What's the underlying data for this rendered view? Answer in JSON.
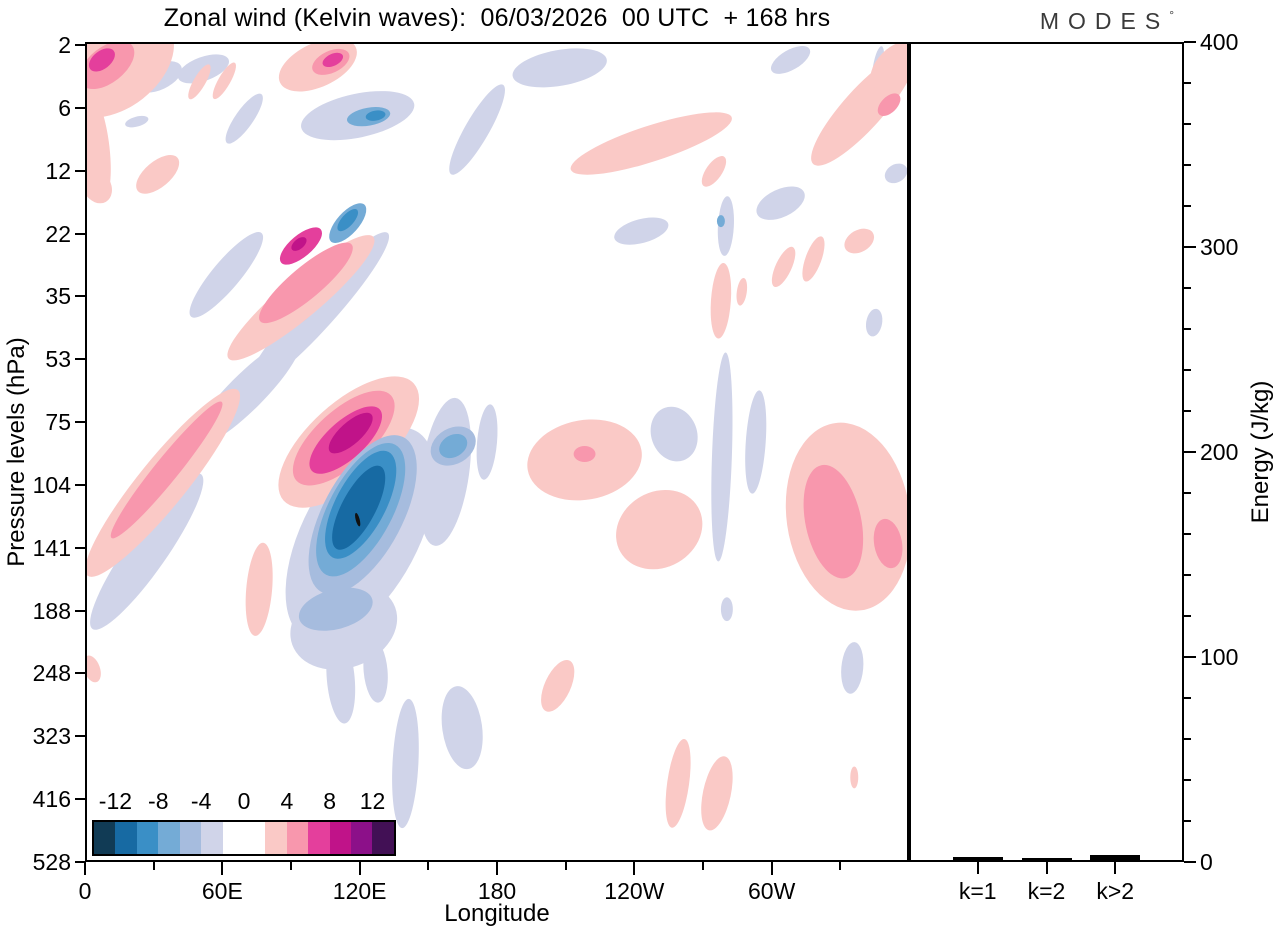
{
  "title": "Zonal wind (Kelvin waves):  06/03/2026  00 UTC  + 168 hrs",
  "logo": {
    "text": "MODES",
    "mark": "°"
  },
  "chart_data": {
    "type": "contour+bar",
    "contour_panel": {
      "title": "Zonal wind (Kelvin waves):  06/03/2026  00 UTC  + 168 hrs",
      "xlabel": "Longitude",
      "ylabel": "Pressure levels (hPa)",
      "x_major_ticks": [
        {
          "lon": 0,
          "label": "0"
        },
        {
          "lon": 60,
          "label": "60E"
        },
        {
          "lon": 120,
          "label": "120E"
        },
        {
          "lon": 180,
          "label": "180"
        },
        {
          "lon": 240,
          "label": "120W"
        },
        {
          "lon": 300,
          "label": "60W"
        }
      ],
      "x_minor_lons": [
        30,
        90,
        150,
        210,
        270,
        330
      ],
      "x_range_deg": [
        0,
        360
      ],
      "y_tick_labels": [
        "2",
        "6",
        "12",
        "22",
        "35",
        "53",
        "75",
        "104",
        "141",
        "188",
        "248",
        "323",
        "416",
        "528"
      ],
      "colorbar": {
        "tick_labels": [
          "-12",
          "-8",
          "-4",
          "0",
          "4",
          "8",
          "12"
        ],
        "tick_cell_boundaries": [
          1,
          3,
          5,
          7,
          9,
          11,
          13
        ],
        "level_edges": [
          -14,
          -12,
          -10,
          -8,
          -6,
          -4,
          -2,
          0,
          2,
          4,
          6,
          8,
          10,
          12,
          14
        ],
        "contour_interval": 2,
        "level_colors": [
          "#113b55",
          "#176aa3",
          "#3a8fc6",
          "#74abd6",
          "#a6bcde",
          "#d0d4e9",
          "#ffffff",
          "#ffffff",
          "#fac9c6",
          "#f897ad",
          "#e43f9c",
          "#c01389",
          "#8c1089",
          "#421055"
        ]
      },
      "features_format": "[level_index (-1 = black contour dash), cx, cy, rx, ry, rot_deg] in plot-local pixels (824x820)",
      "features": [
        [
          5,
          72,
          33,
          25,
          13,
          -25
        ],
        [
          5,
          117,
          25,
          27,
          12,
          -20
        ],
        [
          5,
          158,
          75,
          30,
          9,
          -55
        ],
        [
          5,
          50,
          78,
          12,
          5,
          -15
        ],
        [
          5,
          272,
          72,
          58,
          22,
          -12
        ],
        [
          3,
          283,
          73,
          22,
          9,
          -10
        ],
        [
          2,
          290,
          72,
          10,
          5,
          -10
        ],
        [
          5,
          392,
          86,
          52,
          12,
          -60
        ],
        [
          5,
          140,
          232,
          55,
          14,
          -50
        ],
        [
          5,
          232,
          268,
          105,
          18,
          -48
        ],
        [
          4,
          218,
          266,
          22,
          9,
          -48
        ],
        [
          5,
          60,
          510,
          95,
          20,
          -55
        ],
        [
          5,
          160,
          350,
          75,
          18,
          -45
        ],
        [
          3,
          40,
          498,
          28,
          8,
          -60
        ],
        [
          5,
          475,
          24,
          48,
          18,
          -10
        ],
        [
          5,
          707,
          16,
          22,
          10,
          -30
        ],
        [
          5,
          795,
          22,
          5,
          20,
          10
        ],
        [
          5,
          813,
          130,
          12,
          9,
          -30
        ],
        [
          5,
          642,
          183,
          8,
          30,
          3
        ],
        [
          3,
          637,
          178,
          4,
          6,
          0
        ],
        [
          5,
          697,
          160,
          26,
          14,
          -25
        ],
        [
          5,
          557,
          188,
          28,
          12,
          -15
        ],
        [
          5,
          791,
          280,
          8,
          14,
          10
        ],
        [
          5,
          590,
          392,
          23,
          28,
          -20
        ],
        [
          5,
          638,
          415,
          10,
          105,
          2
        ],
        [
          5,
          672,
          400,
          10,
          52,
          4
        ],
        [
          5,
          643,
          568,
          6,
          12,
          0
        ],
        [
          5,
          769,
          627,
          11,
          26,
          5
        ],
        [
          5,
          320,
          723,
          13,
          65,
          3
        ],
        [
          5,
          377,
          687,
          20,
          42,
          -8
        ],
        [
          8,
          30,
          22,
          65,
          42,
          -38
        ],
        [
          8,
          6,
          100,
          16,
          60,
          -8
        ],
        [
          9,
          20,
          21,
          32,
          18,
          -38
        ],
        [
          10,
          15,
          16,
          15,
          9,
          -38
        ],
        [
          8,
          113,
          38,
          20,
          6,
          -60
        ],
        [
          8,
          138,
          37,
          21,
          6,
          -60
        ],
        [
          8,
          232,
          21,
          42,
          22,
          -25
        ],
        [
          9,
          245,
          18,
          20,
          11,
          -25
        ],
        [
          10,
          247,
          16,
          11,
          6,
          -25
        ],
        [
          8,
          71,
          131,
          26,
          13,
          -40
        ],
        [
          8,
          10,
          143,
          14,
          18,
          -30
        ],
        [
          8,
          76,
          441,
          120,
          24,
          -51
        ],
        [
          9,
          80,
          428,
          88,
          12,
          -51
        ],
        [
          8,
          215,
          255,
          95,
          20,
          -40
        ],
        [
          9,
          220,
          240,
          60,
          16,
          -40
        ],
        [
          10,
          215,
          203,
          26,
          11,
          -40
        ],
        [
          11,
          213,
          201,
          9,
          5,
          -40
        ],
        [
          3,
          262,
          180,
          25,
          11,
          -48
        ],
        [
          2,
          262,
          177,
          14,
          6,
          -48
        ],
        [
          8,
          567,
          100,
          85,
          18,
          -18
        ],
        [
          8,
          630,
          128,
          18,
          8,
          -55
        ],
        [
          8,
          780,
          65,
          75,
          20,
          -48
        ],
        [
          8,
          812,
          22,
          30,
          18,
          -45
        ],
        [
          9,
          806,
          61,
          14,
          8,
          -45
        ],
        [
          8,
          637,
          258,
          10,
          38,
          4
        ],
        [
          8,
          658,
          249,
          5,
          14,
          8
        ],
        [
          8,
          700,
          224,
          8,
          22,
          25
        ],
        [
          8,
          730,
          216,
          8,
          24,
          20
        ],
        [
          8,
          776,
          198,
          16,
          11,
          -30
        ],
        [
          8,
          500,
          418,
          58,
          40,
          -10
        ],
        [
          8,
          575,
          488,
          45,
          38,
          -30
        ],
        [
          9,
          500,
          412,
          11,
          8,
          0
        ],
        [
          8,
          765,
          475,
          62,
          95,
          -8
        ],
        [
          9,
          750,
          480,
          28,
          58,
          -12
        ],
        [
          9,
          805,
          502,
          14,
          25,
          -10
        ],
        [
          8,
          771,
          737,
          4,
          11,
          0
        ],
        [
          8,
          473,
          645,
          13,
          28,
          25
        ],
        [
          8,
          594,
          743,
          11,
          45,
          8
        ],
        [
          8,
          633,
          753,
          14,
          38,
          12
        ],
        [
          8,
          173,
          548,
          13,
          47,
          5
        ],
        [
          8,
          5,
          628,
          8,
          14,
          -20
        ],
        [
          5,
          275,
          493,
          118,
          58,
          -62
        ],
        [
          5,
          258,
          585,
          55,
          42,
          -20
        ],
        [
          5,
          360,
          430,
          24,
          75,
          8
        ],
        [
          5,
          402,
          400,
          10,
          38,
          5
        ],
        [
          5,
          255,
          638,
          14,
          45,
          -5
        ],
        [
          5,
          290,
          630,
          12,
          32,
          -5
        ],
        [
          8,
          263,
          400,
          88,
          40,
          -42
        ],
        [
          9,
          258,
          396,
          64,
          28,
          -42
        ],
        [
          10,
          260,
          398,
          46,
          19,
          -42
        ],
        [
          11,
          265,
          391,
          28,
          11,
          -42
        ],
        [
          4,
          277,
          473,
          88,
          40,
          -62
        ],
        [
          3,
          275,
          468,
          74,
          32,
          -62
        ],
        [
          2,
          275,
          463,
          60,
          25,
          -62
        ],
        [
          1,
          273,
          466,
          47,
          17,
          -62
        ],
        [
          4,
          250,
          568,
          38,
          20,
          -15
        ],
        [
          4,
          368,
          404,
          24,
          18,
          -30
        ],
        [
          3,
          368,
          404,
          15,
          11,
          -30
        ],
        [
          -1,
          272,
          478,
          2,
          7,
          -15
        ]
      ]
    },
    "energy_panel": {
      "ylabel": "Energy (J/kg)",
      "y_range": [
        0,
        400
      ],
      "y_major_ticks": [
        "0",
        "100",
        "200",
        "300",
        "400"
      ],
      "y_minor_step": 20,
      "categories": [
        "k=1",
        "k=2",
        "k>2"
      ],
      "values_approx_jkg": [
        1.5,
        1,
        2.5
      ]
    }
  }
}
